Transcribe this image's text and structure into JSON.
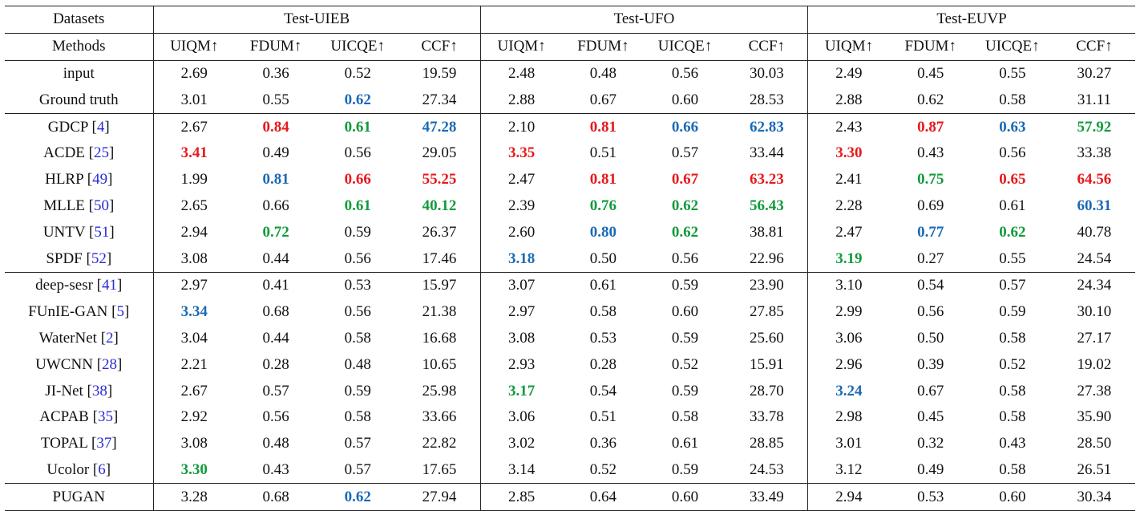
{
  "header": {
    "datasets_label": "Datasets",
    "methods_label": "Methods",
    "datasets": [
      "Test-UIEB",
      "Test-UFO",
      "Test-EUVP"
    ],
    "metrics": [
      "UIQM↑",
      "FDUM↑",
      "UICQE↑",
      "CCF↑"
    ]
  },
  "colors": {
    "red": "#e8191c",
    "blue": "#1a6ab5",
    "green": "#119b3c",
    "ref": "#2a2ad8"
  },
  "groups": [
    [
      {
        "name": "input",
        "ref": "",
        "cells": [
          [
            "2.69",
            ""
          ],
          [
            "0.36",
            ""
          ],
          [
            "0.52",
            ""
          ],
          [
            "19.59",
            ""
          ],
          [
            "2.48",
            ""
          ],
          [
            "0.48",
            ""
          ],
          [
            "0.56",
            ""
          ],
          [
            "30.03",
            ""
          ],
          [
            "2.49",
            ""
          ],
          [
            "0.45",
            ""
          ],
          [
            "0.55",
            ""
          ],
          [
            "30.27",
            ""
          ]
        ]
      },
      {
        "name": "Ground truth",
        "ref": "",
        "cells": [
          [
            "3.01",
            ""
          ],
          [
            "0.55",
            ""
          ],
          [
            "0.62",
            "blue"
          ],
          [
            "27.34",
            ""
          ],
          [
            "2.88",
            ""
          ],
          [
            "0.67",
            ""
          ],
          [
            "0.60",
            ""
          ],
          [
            "28.53",
            ""
          ],
          [
            "2.88",
            ""
          ],
          [
            "0.62",
            ""
          ],
          [
            "0.58",
            ""
          ],
          [
            "31.11",
            ""
          ]
        ]
      }
    ],
    [
      {
        "name": "GDCP",
        "ref": "4",
        "cells": [
          [
            "2.67",
            ""
          ],
          [
            "0.84",
            "red"
          ],
          [
            "0.61",
            "green"
          ],
          [
            "47.28",
            "blue"
          ],
          [
            "2.10",
            ""
          ],
          [
            "0.81",
            "red"
          ],
          [
            "0.66",
            "blue"
          ],
          [
            "62.83",
            "blue"
          ],
          [
            "2.43",
            ""
          ],
          [
            "0.87",
            "red"
          ],
          [
            "0.63",
            "blue"
          ],
          [
            "57.92",
            "green"
          ]
        ]
      },
      {
        "name": "ACDE",
        "ref": "25",
        "cells": [
          [
            "3.41",
            "red"
          ],
          [
            "0.49",
            ""
          ],
          [
            "0.56",
            ""
          ],
          [
            "29.05",
            ""
          ],
          [
            "3.35",
            "red"
          ],
          [
            "0.51",
            ""
          ],
          [
            "0.57",
            ""
          ],
          [
            "33.44",
            ""
          ],
          [
            "3.30",
            "red"
          ],
          [
            "0.43",
            ""
          ],
          [
            "0.56",
            ""
          ],
          [
            "33.38",
            ""
          ]
        ]
      },
      {
        "name": "HLRP",
        "ref": "49",
        "cells": [
          [
            "1.99",
            ""
          ],
          [
            "0.81",
            "blue"
          ],
          [
            "0.66",
            "red"
          ],
          [
            "55.25",
            "red"
          ],
          [
            "2.47",
            ""
          ],
          [
            "0.81",
            "red"
          ],
          [
            "0.67",
            "red"
          ],
          [
            "63.23",
            "red"
          ],
          [
            "2.41",
            ""
          ],
          [
            "0.75",
            "green"
          ],
          [
            "0.65",
            "red"
          ],
          [
            "64.56",
            "red"
          ]
        ]
      },
      {
        "name": "MLLE",
        "ref": "50",
        "cells": [
          [
            "2.65",
            ""
          ],
          [
            "0.66",
            ""
          ],
          [
            "0.61",
            "green"
          ],
          [
            "40.12",
            "green"
          ],
          [
            "2.39",
            ""
          ],
          [
            "0.76",
            "green"
          ],
          [
            "0.62",
            "green"
          ],
          [
            "56.43",
            "green"
          ],
          [
            "2.28",
            ""
          ],
          [
            "0.69",
            ""
          ],
          [
            "0.61",
            ""
          ],
          [
            "60.31",
            "blue"
          ]
        ]
      },
      {
        "name": "UNTV",
        "ref": "51",
        "cells": [
          [
            "2.94",
            ""
          ],
          [
            "0.72",
            "green"
          ],
          [
            "0.59",
            ""
          ],
          [
            "26.37",
            ""
          ],
          [
            "2.60",
            ""
          ],
          [
            "0.80",
            "blue"
          ],
          [
            "0.62",
            "green"
          ],
          [
            "38.81",
            ""
          ],
          [
            "2.47",
            ""
          ],
          [
            "0.77",
            "blue"
          ],
          [
            "0.62",
            "green"
          ],
          [
            "40.78",
            ""
          ]
        ]
      },
      {
        "name": "SPDF",
        "ref": "52",
        "cells": [
          [
            "3.08",
            ""
          ],
          [
            "0.44",
            ""
          ],
          [
            "0.56",
            ""
          ],
          [
            "17.46",
            ""
          ],
          [
            "3.18",
            "blue"
          ],
          [
            "0.50",
            ""
          ],
          [
            "0.56",
            ""
          ],
          [
            "22.96",
            ""
          ],
          [
            "3.19",
            "green"
          ],
          [
            "0.27",
            ""
          ],
          [
            "0.55",
            ""
          ],
          [
            "24.54",
            ""
          ]
        ]
      }
    ],
    [
      {
        "name": "deep-sesr",
        "ref": "41",
        "cells": [
          [
            "2.97",
            ""
          ],
          [
            "0.41",
            ""
          ],
          [
            "0.53",
            ""
          ],
          [
            "15.97",
            ""
          ],
          [
            "3.07",
            ""
          ],
          [
            "0.61",
            ""
          ],
          [
            "0.59",
            ""
          ],
          [
            "23.90",
            ""
          ],
          [
            "3.10",
            ""
          ],
          [
            "0.54",
            ""
          ],
          [
            "0.57",
            ""
          ],
          [
            "24.34",
            ""
          ]
        ]
      },
      {
        "name": "FUnIE-GAN",
        "ref": "5",
        "cells": [
          [
            "3.34",
            "blue"
          ],
          [
            "0.68",
            ""
          ],
          [
            "0.56",
            ""
          ],
          [
            "21.38",
            ""
          ],
          [
            "2.97",
            ""
          ],
          [
            "0.58",
            ""
          ],
          [
            "0.60",
            ""
          ],
          [
            "27.85",
            ""
          ],
          [
            "2.99",
            ""
          ],
          [
            "0.56",
            ""
          ],
          [
            "0.59",
            ""
          ],
          [
            "30.10",
            ""
          ]
        ]
      },
      {
        "name": "WaterNet",
        "ref": "2",
        "cells": [
          [
            "3.04",
            ""
          ],
          [
            "0.44",
            ""
          ],
          [
            "0.58",
            ""
          ],
          [
            "16.68",
            ""
          ],
          [
            "3.08",
            ""
          ],
          [
            "0.53",
            ""
          ],
          [
            "0.59",
            ""
          ],
          [
            "25.60",
            ""
          ],
          [
            "3.06",
            ""
          ],
          [
            "0.50",
            ""
          ],
          [
            "0.58",
            ""
          ],
          [
            "27.17",
            ""
          ]
        ]
      },
      {
        "name": "UWCNN",
        "ref": "28",
        "cells": [
          [
            "2.21",
            ""
          ],
          [
            "0.28",
            ""
          ],
          [
            "0.48",
            ""
          ],
          [
            "10.65",
            ""
          ],
          [
            "2.93",
            ""
          ],
          [
            "0.28",
            ""
          ],
          [
            "0.52",
            ""
          ],
          [
            "15.91",
            ""
          ],
          [
            "2.96",
            ""
          ],
          [
            "0.39",
            ""
          ],
          [
            "0.52",
            ""
          ],
          [
            "19.02",
            ""
          ]
        ]
      },
      {
        "name": "JI-Net",
        "ref": "38",
        "cells": [
          [
            "2.67",
            ""
          ],
          [
            "0.57",
            ""
          ],
          [
            "0.59",
            ""
          ],
          [
            "25.98",
            ""
          ],
          [
            "3.17",
            "green"
          ],
          [
            "0.54",
            ""
          ],
          [
            "0.59",
            ""
          ],
          [
            "28.70",
            ""
          ],
          [
            "3.24",
            "blue"
          ],
          [
            "0.67",
            ""
          ],
          [
            "0.58",
            ""
          ],
          [
            "27.38",
            ""
          ]
        ]
      },
      {
        "name": "ACPAB",
        "ref": "35",
        "cells": [
          [
            "2.92",
            ""
          ],
          [
            "0.56",
            ""
          ],
          [
            "0.58",
            ""
          ],
          [
            "33.66",
            ""
          ],
          [
            "3.06",
            ""
          ],
          [
            "0.51",
            ""
          ],
          [
            "0.58",
            ""
          ],
          [
            "33.78",
            ""
          ],
          [
            "2.98",
            ""
          ],
          [
            "0.45",
            ""
          ],
          [
            "0.58",
            ""
          ],
          [
            "35.90",
            ""
          ]
        ]
      },
      {
        "name": "TOPAL",
        "ref": "37",
        "cells": [
          [
            "3.08",
            ""
          ],
          [
            "0.48",
            ""
          ],
          [
            "0.57",
            ""
          ],
          [
            "22.82",
            ""
          ],
          [
            "3.02",
            ""
          ],
          [
            "0.36",
            ""
          ],
          [
            "0.61",
            ""
          ],
          [
            "28.85",
            ""
          ],
          [
            "3.01",
            ""
          ],
          [
            "0.32",
            ""
          ],
          [
            "0.43",
            ""
          ],
          [
            "28.50",
            ""
          ]
        ]
      },
      {
        "name": "Ucolor",
        "ref": "6",
        "cells": [
          [
            "3.30",
            "green"
          ],
          [
            "0.43",
            ""
          ],
          [
            "0.57",
            ""
          ],
          [
            "17.65",
            ""
          ],
          [
            "3.14",
            ""
          ],
          [
            "0.52",
            ""
          ],
          [
            "0.59",
            ""
          ],
          [
            "24.53",
            ""
          ],
          [
            "3.12",
            ""
          ],
          [
            "0.49",
            ""
          ],
          [
            "0.58",
            ""
          ],
          [
            "26.51",
            ""
          ]
        ]
      }
    ],
    [
      {
        "name": "PUGAN",
        "ref": "",
        "cells": [
          [
            "3.28",
            ""
          ],
          [
            "0.68",
            ""
          ],
          [
            "0.62",
            "blue"
          ],
          [
            "27.94",
            ""
          ],
          [
            "2.85",
            ""
          ],
          [
            "0.64",
            ""
          ],
          [
            "0.60",
            ""
          ],
          [
            "33.49",
            ""
          ],
          [
            "2.94",
            ""
          ],
          [
            "0.53",
            ""
          ],
          [
            "0.60",
            ""
          ],
          [
            "30.34",
            ""
          ]
        ]
      }
    ]
  ]
}
